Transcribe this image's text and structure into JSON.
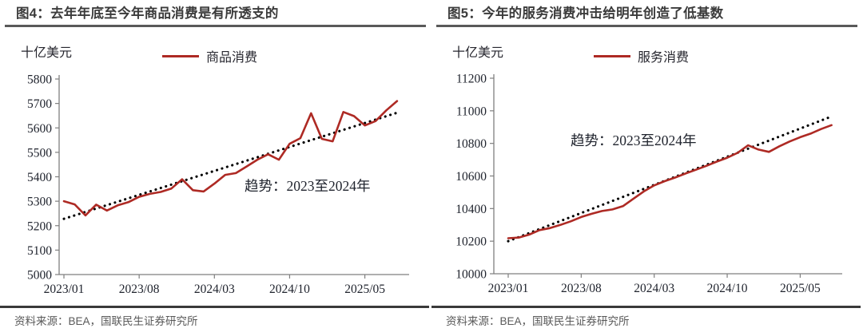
{
  "colors": {
    "accent_red": "#ae2a24",
    "trend_black": "#000000",
    "title_text": "#3b3b3b",
    "title_rule_gray": "#595959",
    "source_rule_dark": "#3a3a3a",
    "source_text_gray": "#595959",
    "axis_gray": "#7f7f7f",
    "label_text": "#20242e"
  },
  "chart_data": [
    {
      "type": "line",
      "title": "图4：去年年底至今年商品消费是有所透支的",
      "unit": "十亿美元",
      "legend": "商品消费",
      "annotation": "趋势：2023至2024年",
      "source": "资料来源：BEA，国联民生证券研究所",
      "ylim": [
        5000,
        5800
      ],
      "y_step": 100,
      "x_ticks": [
        {
          "index": 0,
          "label": "2023/01"
        },
        {
          "index": 7,
          "label": "2023/08"
        },
        {
          "index": 14,
          "label": "2024/03"
        },
        {
          "index": 21,
          "label": "2024/10"
        },
        {
          "index": 28,
          "label": "2025/05"
        }
      ],
      "x_range_note": "monthly 2023/01 - 2025/08",
      "series": [
        {
          "name": "商品消费",
          "style": "solid",
          "color": "#ae2a24",
          "values": [
            5300,
            5287,
            5242,
            5286,
            5262,
            5283,
            5296,
            5318,
            5330,
            5338,
            5352,
            5390,
            5345,
            5340,
            5372,
            5408,
            5415,
            5442,
            5470,
            5492,
            5470,
            5535,
            5558,
            5660,
            5555,
            5545,
            5665,
            5648,
            5610,
            5628,
            5672,
            5710
          ]
        },
        {
          "name": "趋势：2023至2024年",
          "style": "dotted",
          "color": "#000000",
          "endpoints": [
            5228,
            5662
          ]
        }
      ]
    },
    {
      "type": "line",
      "title": "图5：今年的服务消费冲击给明年创造了低基数",
      "unit": "十亿美元",
      "legend": "服务消费",
      "annotation": "趋势：2023至2024年",
      "source": "资料来源：BEA，国联民生证券研究所",
      "ylim": [
        10000,
        11200
      ],
      "y_step": 200,
      "x_ticks": [
        {
          "index": 0,
          "label": "2023/01"
        },
        {
          "index": 7,
          "label": "2023/08"
        },
        {
          "index": 14,
          "label": "2024/03"
        },
        {
          "index": 21,
          "label": "2024/10"
        },
        {
          "index": 28,
          "label": "2025/05"
        }
      ],
      "x_range_note": "monthly 2023/01 - 2025/08",
      "series": [
        {
          "name": "服务消费",
          "style": "solid",
          "color": "#ae2a24",
          "values": [
            10218,
            10222,
            10240,
            10268,
            10280,
            10300,
            10322,
            10348,
            10368,
            10385,
            10395,
            10415,
            10460,
            10505,
            10542,
            10568,
            10590,
            10615,
            10638,
            10662,
            10688,
            10712,
            10742,
            10788,
            10762,
            10748,
            10782,
            10812,
            10838,
            10860,
            10888,
            10912
          ]
        },
        {
          "name": "趋势：2023至2024年",
          "style": "dotted",
          "color": "#000000",
          "endpoints": [
            10200,
            10965
          ]
        }
      ]
    }
  ]
}
